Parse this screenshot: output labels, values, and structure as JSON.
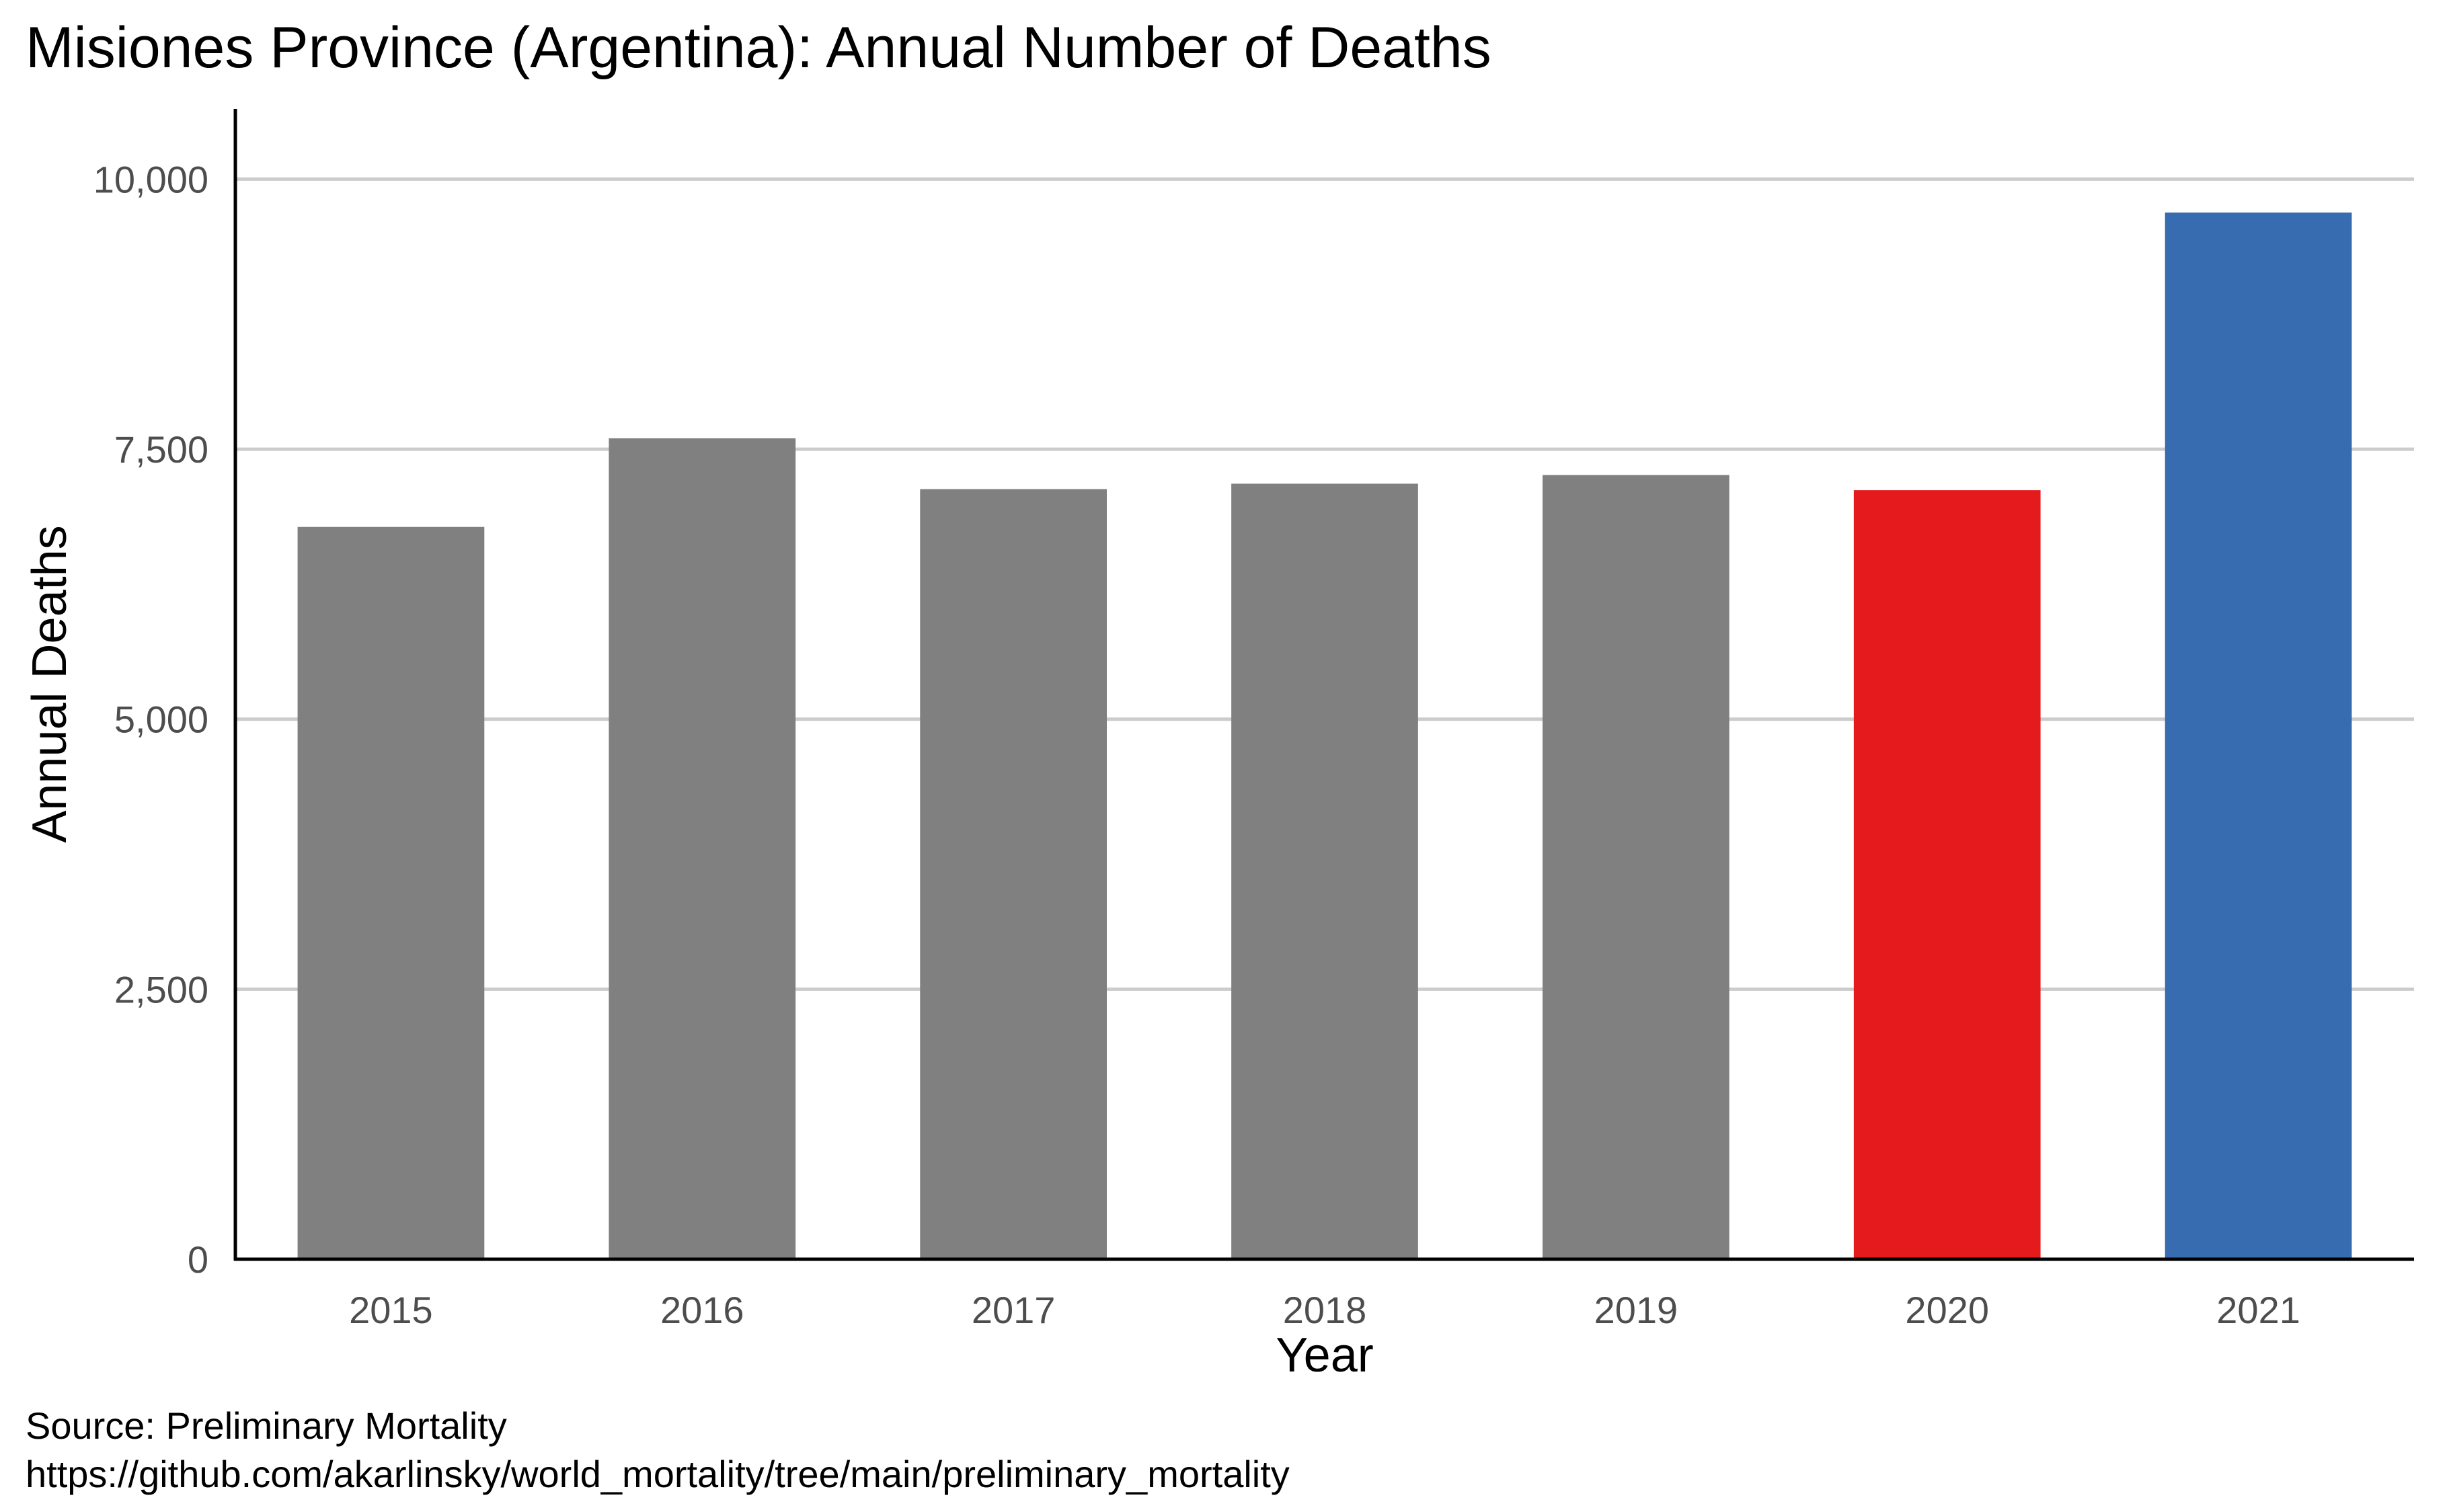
{
  "chart_data": {
    "type": "bar",
    "title": "Misiones Province (Argentina): Annual Number of Deaths",
    "xlabel": "Year",
    "ylabel": "Annual Deaths",
    "categories": [
      "2015",
      "2016",
      "2017",
      "2018",
      "2019",
      "2020",
      "2021"
    ],
    "values": [
      6780,
      7600,
      7130,
      7180,
      7260,
      7120,
      9690
    ],
    "bar_colors": [
      "#808080",
      "#808080",
      "#808080",
      "#808080",
      "#808080",
      "#e41a1c",
      "#386cb0"
    ],
    "ylim": [
      0,
      10650
    ],
    "yticks": [
      0,
      2500,
      5000,
      7500,
      10000
    ],
    "ytick_labels": [
      "0",
      "2,500",
      "5,000",
      "7,500",
      "10,000"
    ],
    "grid": "horizontal",
    "legend": "none"
  },
  "caption": {
    "line1": "Source: Preliminary Mortality",
    "line2": "https://github.com/akarlinsky/world_mortality/tree/main/preliminary_mortality"
  }
}
